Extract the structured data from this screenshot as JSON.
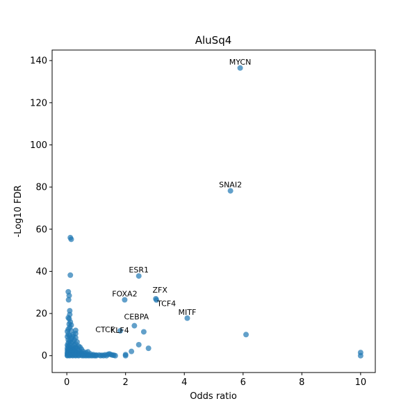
{
  "chart_data": {
    "type": "scatter",
    "title": "AluSq4",
    "xlabel": "Odds ratio",
    "ylabel": "-Log10 FDR",
    "xlim": [
      -0.5,
      10.5
    ],
    "ylim": [
      -8,
      145
    ],
    "xticks": [
      0,
      2,
      4,
      6,
      8,
      10
    ],
    "yticks": [
      0,
      20,
      40,
      60,
      80,
      100,
      120,
      140
    ],
    "grid": false,
    "point_color": "#1f77b4",
    "points": [
      [
        5.9,
        136.5
      ],
      [
        5.57,
        78.2
      ],
      [
        2.45,
        37.8
      ],
      [
        1.97,
        26.5
      ],
      [
        3.03,
        27.0
      ],
      [
        3.05,
        26.4
      ],
      [
        4.1,
        17.8
      ],
      [
        2.3,
        14.2
      ],
      [
        2.62,
        11.3
      ],
      [
        1.82,
        11.8
      ],
      [
        2.45,
        5.2
      ],
      [
        2.78,
        3.5
      ],
      [
        2.2,
        2.0
      ],
      [
        2.0,
        0.5
      ],
      [
        2.0,
        0.0
      ],
      [
        6.1,
        10.0
      ],
      [
        10.0,
        1.5
      ],
      [
        10.0,
        0.0
      ],
      [
        0.12,
        56.0
      ],
      [
        0.15,
        55.2
      ],
      [
        0.12,
        38.2
      ],
      [
        0.05,
        30.3
      ],
      [
        0.08,
        28.5
      ],
      [
        0.06,
        26.5
      ],
      [
        0.1,
        21.3
      ],
      [
        0.1,
        19.5
      ],
      [
        0.05,
        18.0
      ],
      [
        0.08,
        17.5
      ],
      [
        0.12,
        16.0
      ],
      [
        0.08,
        15.0
      ],
      [
        0.15,
        14.5
      ],
      [
        0.1,
        13.5
      ],
      [
        0.05,
        12.5
      ],
      [
        0.02,
        11.5
      ],
      [
        0.15,
        11.8
      ],
      [
        0.3,
        12.0
      ],
      [
        0.3,
        10.5
      ],
      [
        0.22,
        10.0
      ],
      [
        0.05,
        10.0
      ],
      [
        0.1,
        9.5
      ],
      [
        0.02,
        9.0
      ],
      [
        0.2,
        9.0
      ],
      [
        0.3,
        8.5
      ],
      [
        0.15,
        8.0
      ],
      [
        0.05,
        7.5
      ],
      [
        0.25,
        7.5
      ],
      [
        0.1,
        7.0
      ],
      [
        0.2,
        6.5
      ],
      [
        0.35,
        6.5
      ],
      [
        0.05,
        6.0
      ],
      [
        0.15,
        6.0
      ],
      [
        0.3,
        5.5
      ],
      [
        0.02,
        5.0
      ],
      [
        0.1,
        5.0
      ],
      [
        0.25,
        5.0
      ],
      [
        0.4,
        4.5
      ],
      [
        0.05,
        4.5
      ],
      [
        0.18,
        4.0
      ],
      [
        0.3,
        4.0
      ],
      [
        0.45,
        4.0
      ],
      [
        0.02,
        3.5
      ],
      [
        0.12,
        3.5
      ],
      [
        0.22,
        3.5
      ],
      [
        0.35,
        3.5
      ],
      [
        0.5,
        3.0
      ],
      [
        0.05,
        3.0
      ],
      [
        0.15,
        3.0
      ],
      [
        0.28,
        3.0
      ],
      [
        0.4,
        2.5
      ],
      [
        0.02,
        2.5
      ],
      [
        0.1,
        2.5
      ],
      [
        0.2,
        2.5
      ],
      [
        0.3,
        2.0
      ],
      [
        0.55,
        2.0
      ],
      [
        0.05,
        2.0
      ],
      [
        0.15,
        2.0
      ],
      [
        0.45,
        1.8
      ],
      [
        0.65,
        1.5
      ],
      [
        0.02,
        1.5
      ],
      [
        0.1,
        1.5
      ],
      [
        0.25,
        1.5
      ],
      [
        0.35,
        1.5
      ],
      [
        0.5,
        1.2
      ],
      [
        0.72,
        1.8
      ],
      [
        0.02,
        1.0
      ],
      [
        0.12,
        1.0
      ],
      [
        0.22,
        1.0
      ],
      [
        0.32,
        1.0
      ],
      [
        0.42,
        1.0
      ],
      [
        0.6,
        1.0
      ],
      [
        0.8,
        0.8
      ],
      [
        0.05,
        0.5
      ],
      [
        0.15,
        0.5
      ],
      [
        0.25,
        0.5
      ],
      [
        0.35,
        0.5
      ],
      [
        0.5,
        0.5
      ],
      [
        0.7,
        0.5
      ],
      [
        0.9,
        0.5
      ],
      [
        1.0,
        0.3
      ],
      [
        1.1,
        0.3
      ],
      [
        1.2,
        0.2
      ],
      [
        1.3,
        0.4
      ],
      [
        1.4,
        0.6
      ],
      [
        1.45,
        0.8
      ],
      [
        1.5,
        0.5
      ],
      [
        1.55,
        0.3
      ],
      [
        1.6,
        0.2
      ],
      [
        1.65,
        0.0
      ],
      [
        0.02,
        0.2
      ],
      [
        0.1,
        0.2
      ],
      [
        0.2,
        0.2
      ],
      [
        0.3,
        0.2
      ],
      [
        0.4,
        0.2
      ],
      [
        0.5,
        0.1
      ],
      [
        0.6,
        0.1
      ],
      [
        0.7,
        0.1
      ],
      [
        0.8,
        0.1
      ],
      [
        0.9,
        0.1
      ],
      [
        1.0,
        0.0
      ],
      [
        1.15,
        0.0
      ],
      [
        1.25,
        0.0
      ],
      [
        1.35,
        0.0
      ],
      [
        0.02,
        0.0
      ],
      [
        0.1,
        0.0
      ],
      [
        0.2,
        0.0
      ],
      [
        0.3,
        0.0
      ],
      [
        0.4,
        0.0
      ],
      [
        0.55,
        0.0
      ],
      [
        0.65,
        0.0
      ],
      [
        0.75,
        0.0
      ],
      [
        0.85,
        0.0
      ],
      [
        0.95,
        0.0
      ]
    ],
    "annotations": [
      {
        "text": "MYCN",
        "x": 5.9,
        "y": 136.5,
        "anchor": "middle"
      },
      {
        "text": "SNAI2",
        "x": 5.57,
        "y": 78.2,
        "anchor": "middle"
      },
      {
        "text": "ESR1",
        "x": 2.45,
        "y": 37.8,
        "anchor": "middle"
      },
      {
        "text": "FOXA2",
        "x": 1.97,
        "y": 26.5,
        "anchor": "middle"
      },
      {
        "text": "ZFX",
        "x": 3.03,
        "y": 27.0,
        "anchor": "middle"
      },
      {
        "text": "TCF4",
        "x": 3.05,
        "y": 26.4,
        "anchor": "start"
      },
      {
        "text": "MITF",
        "x": 4.1,
        "y": 17.8,
        "anchor": "middle"
      },
      {
        "text": "CEBPA",
        "x": 2.3,
        "y": 14.2,
        "anchor": "middle"
      },
      {
        "text": "KLF4",
        "x": 1.82,
        "y": 11.8,
        "anchor": "start"
      },
      {
        "text": "CTCF",
        "x": 0.02,
        "y": 11.5,
        "anchor": "end"
      }
    ]
  }
}
